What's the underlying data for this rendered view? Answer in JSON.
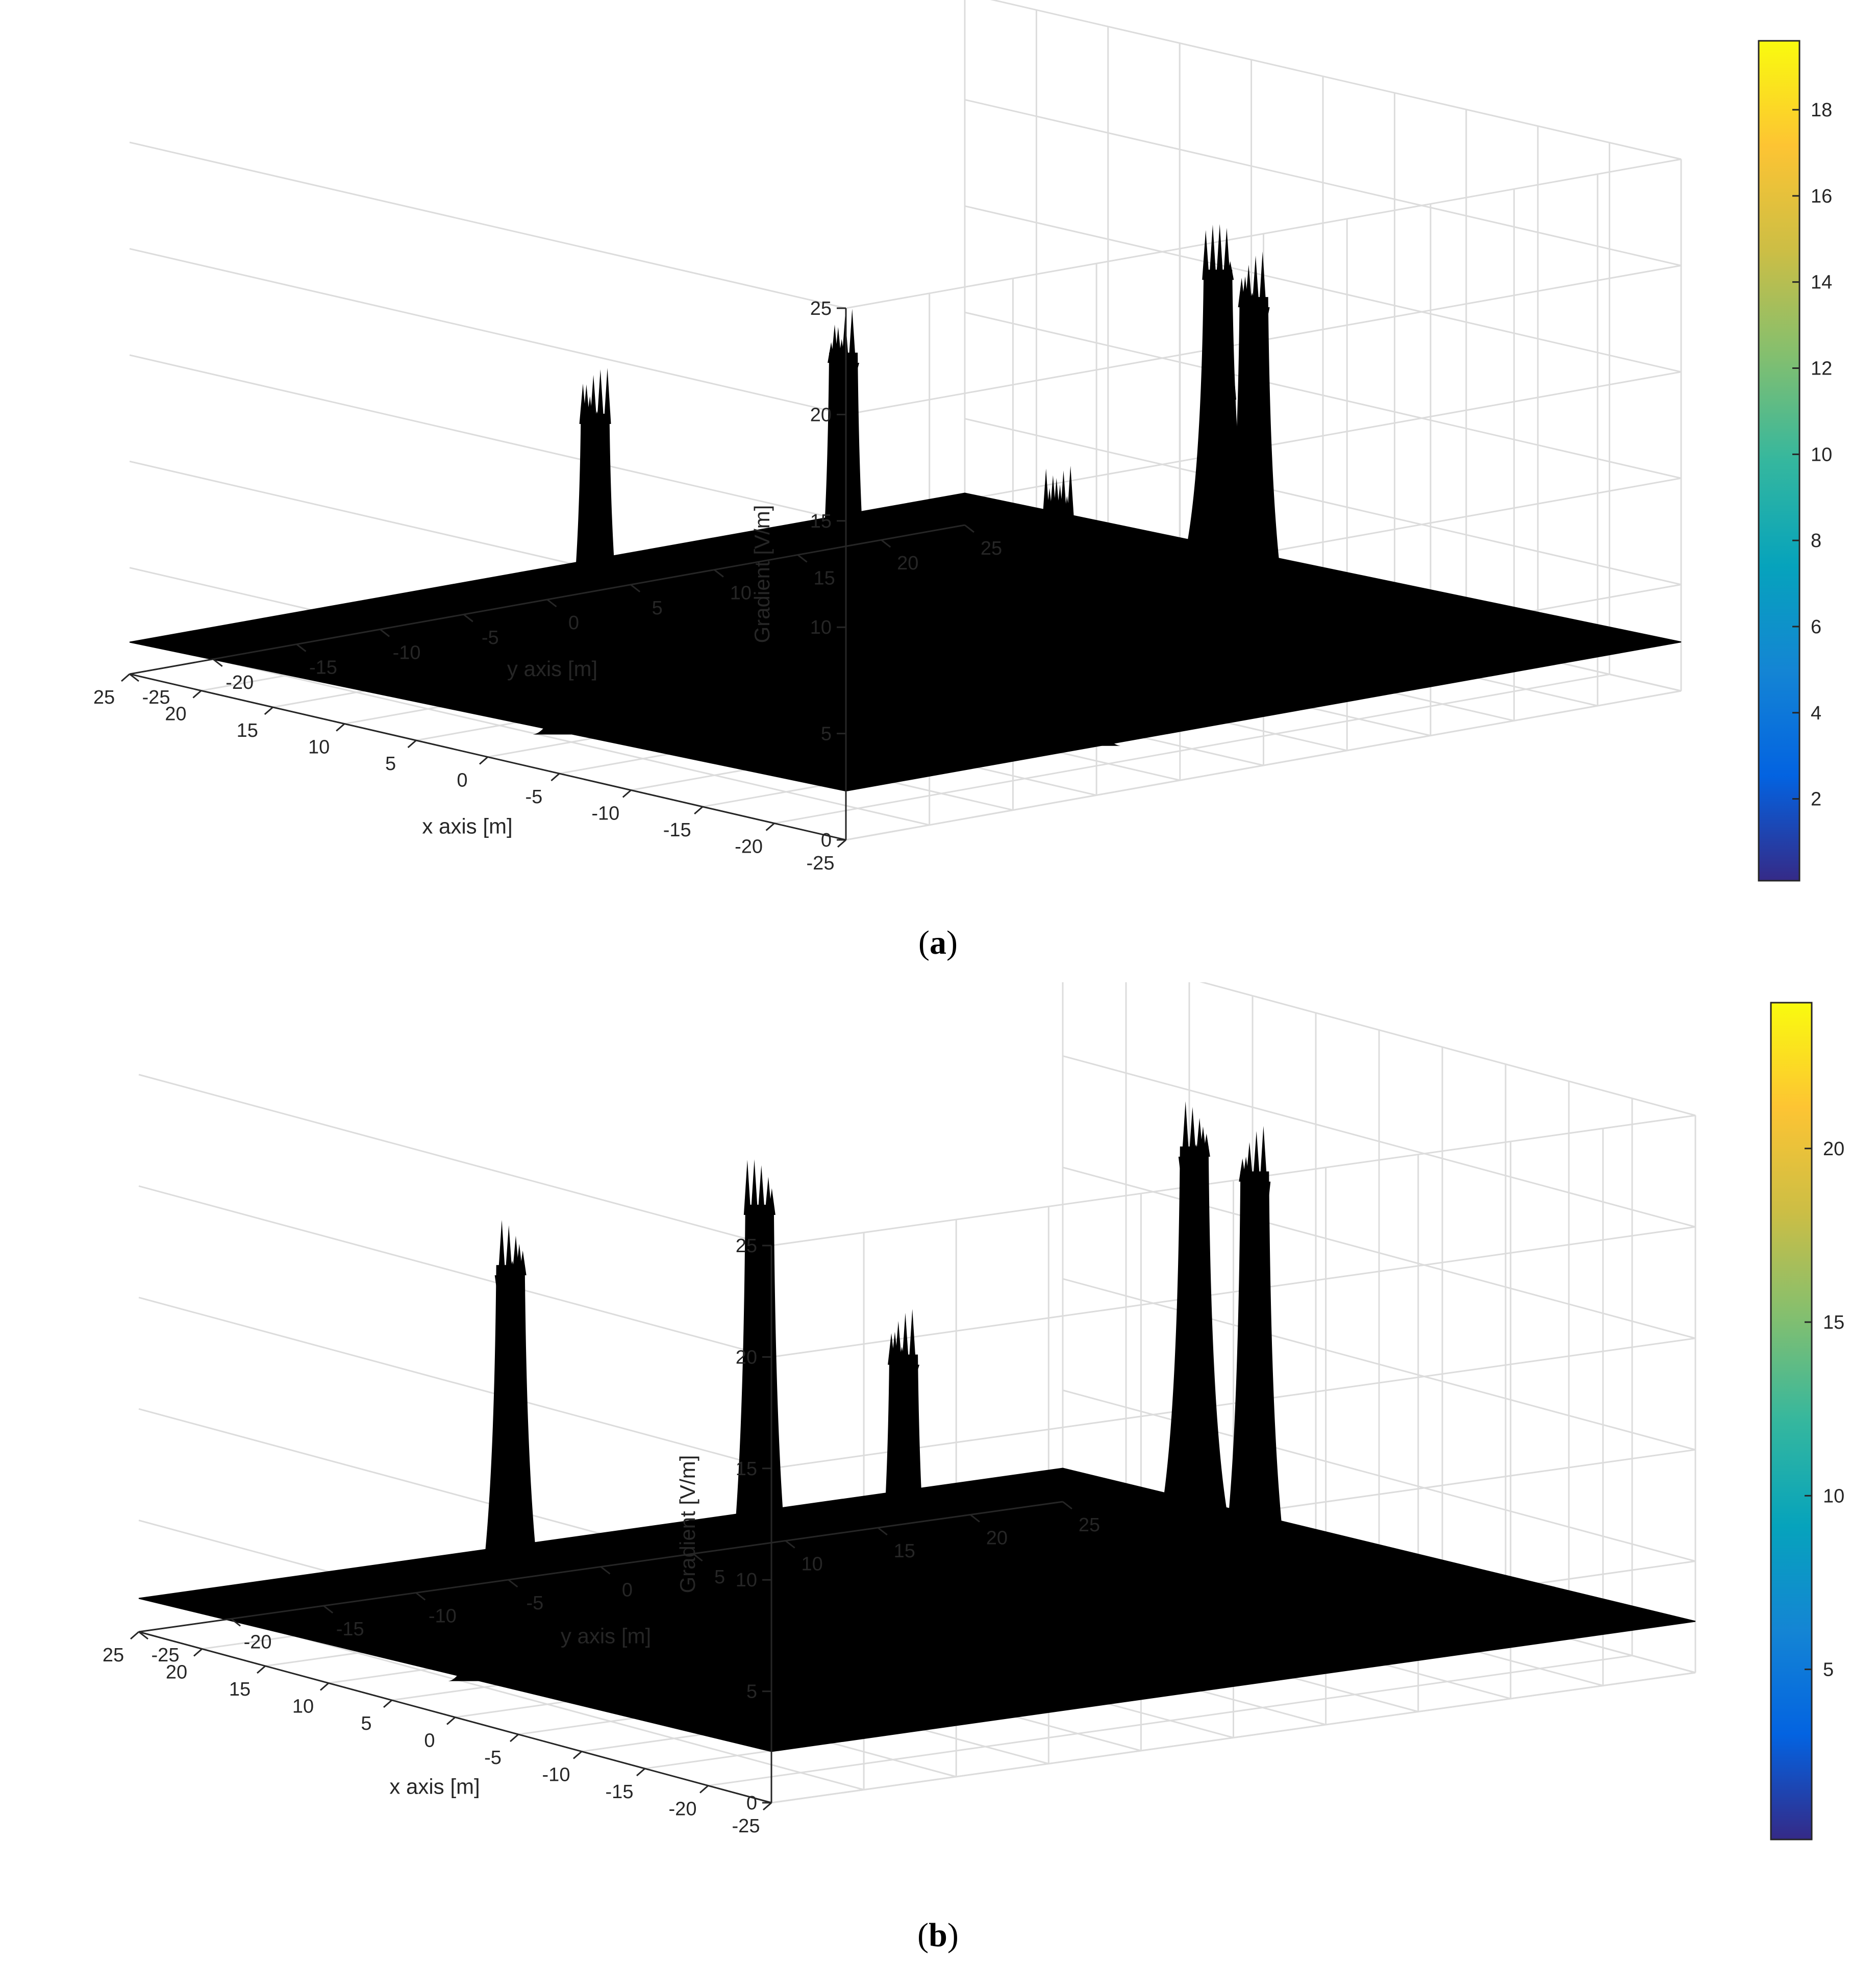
{
  "chart_data": [
    {
      "type": "surface3d",
      "panel_label": "a",
      "xlabel": "x axis [m]",
      "ylabel": "y axis [m]",
      "zlabel": "Gradient [V/m]",
      "xlim": [
        -25,
        25
      ],
      "ylim": [
        -25,
        25
      ],
      "zlim": [
        0,
        25
      ],
      "xticks": [
        "-25",
        "-20",
        "-15",
        "-10",
        "-5",
        "0",
        "5",
        "10",
        "15",
        "20",
        "25"
      ],
      "yticks": [
        "-25",
        "-20",
        "-15",
        "-10",
        "-5",
        "0",
        "5",
        "10",
        "15",
        "20",
        "25"
      ],
      "zticks": [
        "0",
        "5",
        "10",
        "15",
        "20",
        "25"
      ],
      "grid": true,
      "colorbar": {
        "min": 0.1,
        "max": 19.6,
        "ticks": [
          "2",
          "4",
          "6",
          "8",
          "10",
          "12",
          "14",
          "16",
          "18"
        ],
        "colormap": "parula"
      },
      "surface_color": "#000000",
      "base_level": 1.5,
      "peaks": [
        {
          "x": -4,
          "y": -22,
          "max": 18.5
        },
        {
          "x": -12,
          "y": -14,
          "max": 21.5
        },
        {
          "x": -20,
          "y": -8,
          "max": 14.5
        },
        {
          "x": -15,
          "y": 8,
          "max": 21.5
        },
        {
          "x": -8,
          "y": 12,
          "max": 15.5
        },
        {
          "x": -2,
          "y": 17,
          "max": 19.5
        }
      ]
    },
    {
      "type": "surface3d",
      "panel_label": "b",
      "xlabel": "x axis [m]",
      "ylabel": "y axis [m]",
      "zlabel": "Gradient [V/m]",
      "xlim": [
        -25,
        25
      ],
      "ylim": [
        -25,
        25
      ],
      "zlim": [
        0,
        25
      ],
      "xticks": [
        "-25",
        "-20",
        "-15",
        "-10",
        "-5",
        "0",
        "5",
        "10",
        "15",
        "20",
        "25"
      ],
      "yticks": [
        "-25",
        "-20",
        "-15",
        "-10",
        "-5",
        "0",
        "5",
        "10",
        "15",
        "20",
        "25"
      ],
      "zticks": [
        "0",
        "5",
        "10",
        "15",
        "20",
        "25"
      ],
      "grid": true,
      "colorbar": {
        "min": 0.1,
        "max": 24.2,
        "ticks": [
          "5",
          "10",
          "15",
          "20"
        ],
        "colormap": "parula"
      },
      "surface_color": "#000000",
      "base_level": 1.5,
      "peaks": [
        {
          "x": 0,
          "y": -22,
          "max": 22
        },
        {
          "x": -8,
          "y": -14,
          "max": 25
        },
        {
          "x": -15,
          "y": -11,
          "max": 19
        },
        {
          "x": -15,
          "y": 8,
          "max": 25
        },
        {
          "x": 0,
          "y": 15,
          "max": 23
        }
      ]
    }
  ]
}
